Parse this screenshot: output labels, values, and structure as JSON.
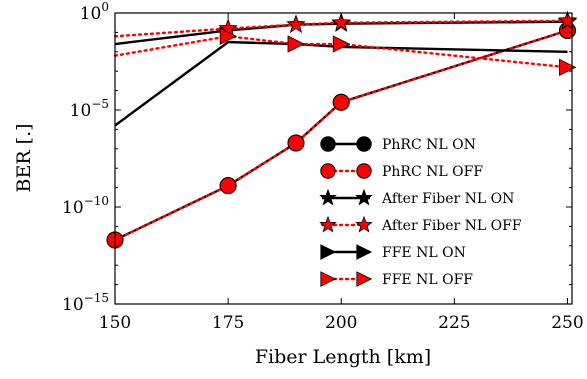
{
  "chart_data": {
    "type": "line",
    "title": "",
    "xlabel": "Fiber Length [km]",
    "ylabel": "BER [.]",
    "xlim": [
      150,
      251
    ],
    "ylim_exponent": [
      -15,
      0
    ],
    "yscale": "log",
    "xticks": [
      150,
      175,
      200,
      225,
      250
    ],
    "yticks": [
      {
        "exp": 0,
        "base": "10",
        "sup": "0"
      },
      {
        "exp": -5,
        "base": "10",
        "sup": "−5"
      },
      {
        "exp": -10,
        "base": "10",
        "sup": "−10"
      },
      {
        "exp": -15,
        "base": "10",
        "sup": "−15"
      }
    ],
    "grid": false,
    "legend_position": "lower-right",
    "series": [
      {
        "name": "PhRC NL ON",
        "marker": "circle",
        "color": "#000000",
        "line": "solid",
        "x": [
          150,
          175,
          190,
          200,
          250
        ],
        "log10_y": [
          -11.7,
          -8.9,
          -6.7,
          -4.6,
          -0.9
        ]
      },
      {
        "name": "PhRC NL OFF",
        "marker": "circle",
        "color": "#ff0000",
        "line": "dotted",
        "x": [
          150,
          175,
          190,
          200,
          250
        ],
        "log10_y": [
          -11.7,
          -8.9,
          -6.7,
          -4.6,
          -0.9
        ]
      },
      {
        "name": "After Fiber NL ON",
        "marker": "star",
        "color": "#000000",
        "line": "solid",
        "x": [
          150,
          175,
          190,
          200,
          250
        ],
        "log10_y": [
          -1.6,
          -0.9,
          -0.6,
          -0.55,
          -0.45
        ]
      },
      {
        "name": "After Fiber NL OFF",
        "marker": "star",
        "color": "#ff0000",
        "line": "dotted",
        "x": [
          150,
          175,
          190,
          200,
          250
        ],
        "log10_y": [
          -1.2,
          -0.8,
          -0.6,
          -0.5,
          -0.4
        ]
      },
      {
        "name": "FFE NL ON",
        "marker": "triangle-right",
        "color": "#000000",
        "line": "solid",
        "x": [
          150,
          175,
          190,
          200,
          250
        ],
        "log10_y": [
          -5.8,
          -1.5,
          -1.6,
          -1.75,
          -2.0
        ]
      },
      {
        "name": "FFE NL OFF",
        "marker": "triangle-right",
        "color": "#ff0000",
        "line": "dotted",
        "x": [
          150,
          175,
          190,
          200,
          250
        ],
        "log10_y": [
          -2.2,
          -1.2,
          -1.6,
          -1.6,
          -2.8
        ]
      }
    ]
  }
}
